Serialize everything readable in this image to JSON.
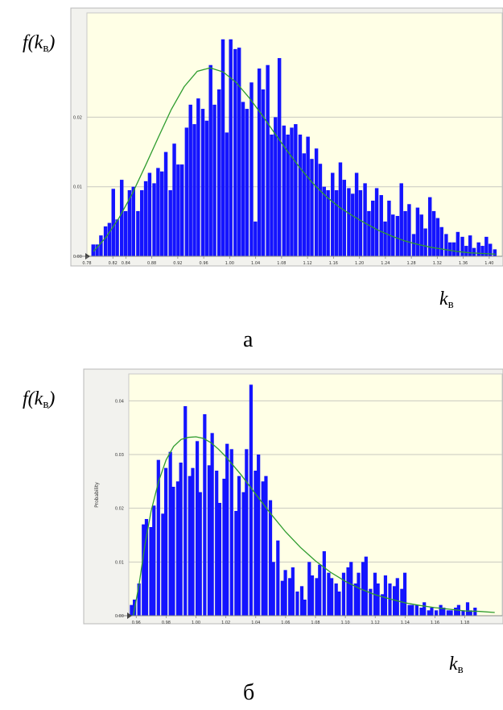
{
  "chart_data": [
    {
      "type": "bar",
      "panel_caption": "а",
      "y_axis_label_main": "f(k",
      "y_axis_label_sub": "в",
      "y_axis_label_close": ")",
      "x_axis_label_main": "k",
      "x_axis_label_sub": "в",
      "ylabel": "",
      "xlim": [
        0.78,
        1.42
      ],
      "ylim": [
        0,
        0.035
      ],
      "grid": true,
      "plot_background": "#ffffe6",
      "bar_color": "#1414ff",
      "curve_color": "#2e9c2e",
      "x_ticks": [
        0.78,
        0.82,
        0.84,
        0.88,
        0.92,
        0.96,
        1.0,
        1.04,
        1.08,
        1.12,
        1.16,
        1.2,
        1.24,
        1.28,
        1.32,
        1.36,
        1.4
      ],
      "x_tick_labels": [
        "0.78",
        "0.82",
        "0.84",
        "0.88",
        "0.92",
        "0.96",
        "1.00",
        "1.04",
        "1.08",
        "1.12",
        "1.16",
        "1.20",
        "1.24",
        "1.28",
        "1.32",
        "1.36",
        "1.40"
      ],
      "y_ticks": [
        0,
        0.01,
        0.02
      ],
      "y_tick_labels": [
        "0.00",
        "0.01",
        "0.02"
      ],
      "bin_width": 0.00626,
      "x": [
        0.79,
        0.796,
        0.802,
        0.809,
        0.815,
        0.821,
        0.827,
        0.834,
        0.84,
        0.846,
        0.852,
        0.859,
        0.865,
        0.871,
        0.877,
        0.884,
        0.89,
        0.896,
        0.902,
        0.909,
        0.915,
        0.921,
        0.927,
        0.934,
        0.94,
        0.946,
        0.952,
        0.959,
        0.965,
        0.971,
        0.977,
        0.984,
        0.99,
        0.996,
        1.002,
        1.009,
        1.015,
        1.021,
        1.027,
        1.034,
        1.04,
        1.046,
        1.052,
        1.059,
        1.065,
        1.071,
        1.077,
        1.084,
        1.09,
        1.096,
        1.102,
        1.109,
        1.115,
        1.121,
        1.127,
        1.134,
        1.14,
        1.146,
        1.152,
        1.159,
        1.165,
        1.171,
        1.177,
        1.184,
        1.19,
        1.196,
        1.202,
        1.209,
        1.215,
        1.221,
        1.227,
        1.234,
        1.24,
        1.246,
        1.252,
        1.259,
        1.265,
        1.271,
        1.277,
        1.284,
        1.29,
        1.296,
        1.302,
        1.309,
        1.315,
        1.321,
        1.327,
        1.334,
        1.34,
        1.346,
        1.352,
        1.359,
        1.365,
        1.371,
        1.377,
        1.384,
        1.39,
        1.396,
        1.402,
        1.409
      ],
      "values": [
        0.0017,
        0.0017,
        0.003,
        0.0043,
        0.0048,
        0.0097,
        0.0053,
        0.011,
        0.0065,
        0.0095,
        0.01,
        0.0065,
        0.0095,
        0.0108,
        0.012,
        0.0105,
        0.0127,
        0.0122,
        0.015,
        0.0095,
        0.0162,
        0.0132,
        0.0132,
        0.0185,
        0.0218,
        0.019,
        0.0227,
        0.0212,
        0.0195,
        0.0275,
        0.0218,
        0.024,
        0.0312,
        0.0178,
        0.0312,
        0.0298,
        0.03,
        0.0222,
        0.0212,
        0.025,
        0.005,
        0.027,
        0.024,
        0.0275,
        0.0175,
        0.02,
        0.0285,
        0.0188,
        0.0175,
        0.0185,
        0.019,
        0.0175,
        0.0148,
        0.0172,
        0.014,
        0.0155,
        0.0133,
        0.01,
        0.0095,
        0.012,
        0.0095,
        0.0135,
        0.011,
        0.0098,
        0.009,
        0.012,
        0.0095,
        0.0105,
        0.0065,
        0.008,
        0.0098,
        0.0088,
        0.005,
        0.008,
        0.006,
        0.0058,
        0.0105,
        0.0065,
        0.0075,
        0.0032,
        0.007,
        0.006,
        0.004,
        0.0085,
        0.0065,
        0.0055,
        0.0042,
        0.0032,
        0.002,
        0.002,
        0.0035,
        0.0028,
        0.0015,
        0.003,
        0.0012,
        0.002,
        0.0015,
        0.0028,
        0.0018,
        0.001
      ],
      "curve": [
        [
          0.79,
          0.0007
        ],
        [
          0.81,
          0.0028
        ],
        [
          0.83,
          0.0056
        ],
        [
          0.85,
          0.009
        ],
        [
          0.87,
          0.013
        ],
        [
          0.89,
          0.0171
        ],
        [
          0.91,
          0.0211
        ],
        [
          0.93,
          0.0244
        ],
        [
          0.95,
          0.0266
        ],
        [
          0.97,
          0.0271
        ],
        [
          0.99,
          0.0265
        ],
        [
          1.01,
          0.025
        ],
        [
          1.03,
          0.0228
        ],
        [
          1.05,
          0.0203
        ],
        [
          1.07,
          0.0176
        ],
        [
          1.09,
          0.015
        ],
        [
          1.11,
          0.0125
        ],
        [
          1.13,
          0.0103
        ],
        [
          1.15,
          0.0085
        ],
        [
          1.17,
          0.007
        ],
        [
          1.19,
          0.0058
        ],
        [
          1.21,
          0.0047
        ],
        [
          1.23,
          0.0037
        ],
        [
          1.25,
          0.0029
        ],
        [
          1.27,
          0.0022
        ],
        [
          1.29,
          0.0017
        ],
        [
          1.31,
          0.0013
        ],
        [
          1.33,
          0.001
        ],
        [
          1.35,
          0.0007
        ],
        [
          1.37,
          0.0005
        ],
        [
          1.39,
          0.0004
        ],
        [
          1.41,
          0.0003
        ]
      ]
    },
    {
      "type": "bar",
      "panel_caption": "б",
      "y_axis_label_main": "f(k",
      "y_axis_label_sub": "в",
      "y_axis_label_close": ")",
      "x_axis_label_main": "k",
      "x_axis_label_sub": "в",
      "ylabel": "Probability",
      "xlim": [
        0.955,
        1.205
      ],
      "ylim": [
        0,
        0.045
      ],
      "grid": true,
      "plot_background": "#ffffe6",
      "bar_color": "#1414ff",
      "curve_color": "#2e9c2e",
      "x_ticks": [
        0.96,
        0.98,
        1.0,
        1.02,
        1.04,
        1.06,
        1.08,
        1.1,
        1.12,
        1.14,
        1.16,
        1.18
      ],
      "x_tick_labels": [
        "0.96",
        "0.98",
        "1.00",
        "1.02",
        "1.04",
        "1.06",
        "1.08",
        "1.10",
        "1.12",
        "1.14",
        "1.16",
        "1.18"
      ],
      "y_ticks": [
        0,
        0.01,
        0.02,
        0.03,
        0.04
      ],
      "y_tick_labels": [
        "0.00",
        "0.01",
        "0.02",
        "0.03",
        "0.04"
      ],
      "bin_width": 0.002585,
      "x": [
        0.957,
        0.959,
        0.962,
        0.965,
        0.967,
        0.97,
        0.972,
        0.975,
        0.978,
        0.98,
        0.983,
        0.985,
        0.988,
        0.99,
        0.993,
        0.996,
        0.998,
        1.001,
        1.003,
        1.006,
        1.009,
        1.011,
        1.014,
        1.016,
        1.019,
        1.021,
        1.024,
        1.027,
        1.029,
        1.032,
        1.034,
        1.037,
        1.04,
        1.042,
        1.045,
        1.047,
        1.05,
        1.052,
        1.055,
        1.058,
        1.06,
        1.063,
        1.065,
        1.068,
        1.071,
        1.073,
        1.076,
        1.078,
        1.081,
        1.083,
        1.086,
        1.089,
        1.091,
        1.094,
        1.096,
        1.099,
        1.102,
        1.104,
        1.107,
        1.109,
        1.112,
        1.114,
        1.117,
        1.12,
        1.122,
        1.125,
        1.127,
        1.13,
        1.133,
        1.135,
        1.138,
        1.14,
        1.143,
        1.145,
        1.148,
        1.151,
        1.153,
        1.156,
        1.158,
        1.161,
        1.164,
        1.166,
        1.169,
        1.171,
        1.174,
        1.176,
        1.179,
        1.182,
        1.184,
        1.187
      ],
      "values": [
        0.002,
        0.003,
        0.006,
        0.017,
        0.018,
        0.0165,
        0.0205,
        0.029,
        0.019,
        0.0275,
        0.0305,
        0.024,
        0.025,
        0.0285,
        0.039,
        0.026,
        0.0275,
        0.0325,
        0.023,
        0.0375,
        0.028,
        0.034,
        0.027,
        0.021,
        0.0255,
        0.032,
        0.031,
        0.0195,
        0.026,
        0.023,
        0.031,
        0.043,
        0.027,
        0.03,
        0.025,
        0.026,
        0.0215,
        0.01,
        0.014,
        0.0065,
        0.0085,
        0.007,
        0.009,
        0.0045,
        0.0055,
        0.003,
        0.01,
        0.0075,
        0.007,
        0.0095,
        0.012,
        0.008,
        0.007,
        0.006,
        0.0045,
        0.008,
        0.009,
        0.01,
        0.006,
        0.008,
        0.01,
        0.011,
        0.005,
        0.008,
        0.006,
        0.004,
        0.0075,
        0.006,
        0.0055,
        0.007,
        0.005,
        0.008,
        0.002,
        0.002,
        0.002,
        0.0015,
        0.0025,
        0.001,
        0.0015,
        0.001,
        0.002,
        0.0015,
        0.001,
        0.001,
        0.0015,
        0.002,
        0.001,
        0.0025,
        0.001,
        0.0015
      ],
      "curve": [
        [
          0.958,
          0.0
        ],
        [
          0.962,
          0.006
        ],
        [
          0.966,
          0.0135
        ],
        [
          0.97,
          0.0195
        ],
        [
          0.975,
          0.025
        ],
        [
          0.98,
          0.029
        ],
        [
          0.985,
          0.0315
        ],
        [
          0.99,
          0.0328
        ],
        [
          0.995,
          0.0332
        ],
        [
          1.0,
          0.0333
        ],
        [
          1.005,
          0.033
        ],
        [
          1.01,
          0.0322
        ],
        [
          1.015,
          0.031
        ],
        [
          1.02,
          0.0296
        ],
        [
          1.03,
          0.0263
        ],
        [
          1.04,
          0.0226
        ],
        [
          1.05,
          0.019
        ],
        [
          1.06,
          0.0156
        ],
        [
          1.07,
          0.0127
        ],
        [
          1.08,
          0.0102
        ],
        [
          1.09,
          0.0081
        ],
        [
          1.1,
          0.0064
        ],
        [
          1.11,
          0.005
        ],
        [
          1.12,
          0.0039
        ],
        [
          1.13,
          0.0031
        ],
        [
          1.14,
          0.0024
        ],
        [
          1.15,
          0.0019
        ],
        [
          1.16,
          0.0015
        ],
        [
          1.17,
          0.0012
        ],
        [
          1.18,
          0.0009
        ],
        [
          1.19,
          0.0008
        ],
        [
          1.2,
          0.0006
        ]
      ]
    }
  ]
}
